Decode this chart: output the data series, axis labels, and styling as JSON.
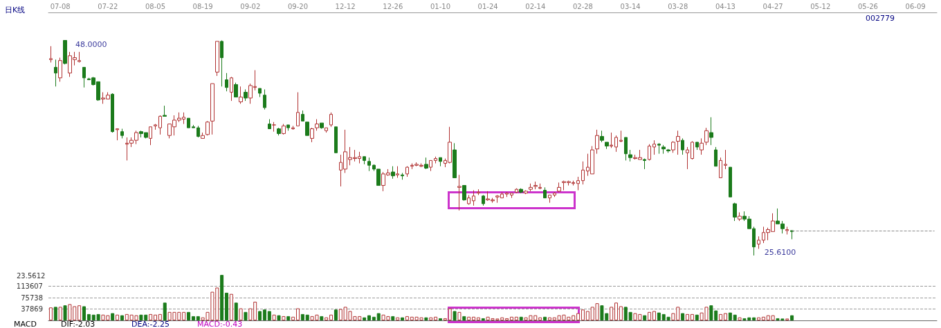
{
  "chart_data": [
    {
      "type": "candlestick",
      "title": "日K线",
      "subtitle": "002779",
      "categories": [
        null,
        null,
        "07-08",
        null,
        null,
        null,
        null,
        null,
        null,
        null,
        null,
        null,
        "07-22",
        null,
        null,
        null,
        null,
        null,
        null,
        null,
        null,
        null,
        "08-05",
        null,
        null,
        null,
        null,
        null,
        null,
        null,
        null,
        null,
        "08-19",
        null,
        null,
        null,
        null,
        null,
        null,
        null,
        null,
        null,
        "09-02",
        null,
        null,
        null,
        null,
        null,
        null,
        null,
        null,
        null,
        "09-20",
        null,
        null,
        null,
        null,
        null,
        null,
        null,
        null,
        null,
        "12-12",
        null,
        null,
        null,
        null,
        null,
        null,
        null,
        null,
        null,
        "12-26",
        null,
        null,
        null,
        null,
        null,
        null,
        null,
        null,
        null,
        "01-10",
        null,
        null,
        null,
        null,
        null,
        null,
        null,
        null,
        null,
        "01-24",
        null,
        null,
        null,
        null,
        null,
        null,
        null,
        null,
        null,
        "02-14",
        null,
        null,
        null,
        null,
        null,
        null,
        null,
        null,
        null,
        "02-28",
        null,
        null,
        null,
        null,
        null,
        null,
        null,
        null,
        null,
        "03-14",
        null,
        null,
        null,
        null,
        null,
        null,
        null,
        null,
        null,
        "03-28",
        null,
        null,
        null,
        null,
        null,
        null,
        null,
        null,
        null,
        "04-13",
        null,
        null,
        null,
        null,
        null,
        null,
        null,
        null,
        null,
        "04-27",
        null,
        null,
        null,
        null,
        null,
        null,
        null,
        null,
        null,
        "05-12",
        null,
        null,
        null,
        null,
        null,
        null,
        null,
        null,
        null,
        "05-26",
        null,
        null,
        null,
        null,
        null,
        null,
        null,
        null,
        null,
        "06-09",
        null,
        null,
        null,
        null
      ],
      "ohlc": [
        [
          46.0,
          47.4,
          45.7,
          46.1
        ],
        [
          45.2,
          46.0,
          43.2,
          44.6
        ],
        [
          44.1,
          46.2,
          43.7,
          45.9
        ],
        [
          48.0,
          48.0,
          45.5,
          45.6
        ],
        [
          44.6,
          46.8,
          44.2,
          46.4
        ],
        [
          46.0,
          46.8,
          45.4,
          46.2
        ],
        [
          45.8,
          46.8,
          45.7,
          45.9
        ],
        [
          45.2,
          45.2,
          43.1,
          44.1
        ],
        [
          44.0,
          44.1,
          43.9,
          43.9
        ],
        [
          44.1,
          44.2,
          43.3,
          43.4
        ],
        [
          43.7,
          43.7,
          41.7,
          41.8
        ],
        [
          41.9,
          42.6,
          41.4,
          42.0
        ],
        [
          41.9,
          42.6,
          41.9,
          42.3
        ],
        [
          42.4,
          42.5,
          38.4,
          38.5
        ],
        [
          38.7,
          38.8,
          37.6,
          38.8
        ],
        [
          38.5,
          38.8,
          37.8,
          38.1
        ],
        [
          37.2,
          37.9,
          35.5,
          37.3
        ],
        [
          37.3,
          37.9,
          36.9,
          37.6
        ],
        [
          37.6,
          38.6,
          37.2,
          38.4
        ],
        [
          38.5,
          38.6,
          37.9,
          38.3
        ],
        [
          38.4,
          38.4,
          37.8,
          37.9
        ],
        [
          37.8,
          39.0,
          37.1,
          39.0
        ],
        [
          39.1,
          39.3,
          38.7,
          39.2
        ],
        [
          38.9,
          40.2,
          38.2,
          40.1
        ],
        [
          40.2,
          41.2,
          40.1,
          40.1
        ],
        [
          38.1,
          39.3,
          37.8,
          39.3
        ],
        [
          39.0,
          40.2,
          38.1,
          39.7
        ],
        [
          39.7,
          40.5,
          39.5,
          39.9
        ],
        [
          39.8,
          40.5,
          39.3,
          40.0
        ],
        [
          39.9,
          39.9,
          38.9,
          38.9
        ],
        [
          39.0,
          39.2,
          38.9,
          38.9
        ],
        [
          38.9,
          39.1,
          37.9,
          38.0
        ],
        [
          37.8,
          38.4,
          37.8,
          38.1
        ],
        [
          38.2,
          39.6,
          38.1,
          39.5
        ],
        [
          39.6,
          43.5,
          38.2,
          43.5
        ],
        [
          44.7,
          47.9,
          44.3,
          47.9
        ],
        [
          47.9,
          48.0,
          43.2,
          46.2
        ],
        [
          43.9,
          44.6,
          42.7,
          43.1
        ],
        [
          42.6,
          44.2,
          41.7,
          44.1
        ],
        [
          43.4,
          43.6,
          42.1,
          42.1
        ],
        [
          41.6,
          43.2,
          41.4,
          42.1
        ],
        [
          42.6,
          42.9,
          41.7,
          42.0
        ],
        [
          42.0,
          43.5,
          41.4,
          43.3
        ],
        [
          43.1,
          44.9,
          42.8,
          43.2
        ],
        [
          43.0,
          43.0,
          42.1,
          42.5
        ],
        [
          42.3,
          42.9,
          40.8,
          41.0
        ],
        [
          39.3,
          39.8,
          38.8,
          38.8
        ],
        [
          39.2,
          39.5,
          38.5,
          39.2
        ],
        [
          38.8,
          38.9,
          38.1,
          38.3
        ],
        [
          38.3,
          39.3,
          38.2,
          39.1
        ],
        [
          39.2,
          39.2,
          38.6,
          38.9
        ],
        [
          38.8,
          39.1,
          38.7,
          38.9
        ],
        [
          39.1,
          42.6,
          39.1,
          40.5
        ],
        [
          40.3,
          40.7,
          39.6,
          39.6
        ],
        [
          39.5,
          39.5,
          38.1,
          38.1
        ],
        [
          37.8,
          38.9,
          37.4,
          38.8
        ],
        [
          38.9,
          39.8,
          38.6,
          39.3
        ],
        [
          39.4,
          39.4,
          38.8,
          38.9
        ],
        [
          38.6,
          38.9,
          38.4,
          38.9
        ],
        [
          39.2,
          40.5,
          39.0,
          40.3
        ],
        [
          39.0,
          39.0,
          36.3,
          36.3
        ],
        [
          34.5,
          36.1,
          32.8,
          35.3
        ],
        [
          34.6,
          38.7,
          34.2,
          36.4
        ],
        [
          35.6,
          36.9,
          35.0,
          35.8
        ],
        [
          35.7,
          36.6,
          35.4,
          35.8
        ],
        [
          35.7,
          36.4,
          35.2,
          35.9
        ],
        [
          35.9,
          35.9,
          35.1,
          35.5
        ],
        [
          35.4,
          35.8,
          34.4,
          35.0
        ],
        [
          35.0,
          35.1,
          34.4,
          34.6
        ],
        [
          34.6,
          34.6,
          32.9,
          32.9
        ],
        [
          32.9,
          34.3,
          32.3,
          34.1
        ],
        [
          34.0,
          34.6,
          33.9,
          34.2
        ],
        [
          34.3,
          34.9,
          33.6,
          33.9
        ],
        [
          34.0,
          34.9,
          33.7,
          34.1
        ],
        [
          34.0,
          34.2,
          33.5,
          33.9
        ],
        [
          34.1,
          34.9,
          33.8,
          34.8
        ],
        [
          34.9,
          35.2,
          34.6,
          35.0
        ],
        [
          35.0,
          35.3,
          34.9,
          35.1
        ],
        [
          34.9,
          35.2,
          34.8,
          35.0
        ],
        [
          35.1,
          35.8,
          34.6,
          34.7
        ],
        [
          34.8,
          35.5,
          34.4,
          35.5
        ],
        [
          35.5,
          35.9,
          35.2,
          35.7
        ],
        [
          35.8,
          35.8,
          34.9,
          35.4
        ],
        [
          35.2,
          35.7,
          34.8,
          35.5
        ],
        [
          35.3,
          39.0,
          35.2,
          37.4
        ],
        [
          36.6,
          37.3,
          33.7,
          33.7
        ],
        [
          32.7,
          34.0,
          30.3,
          32.8
        ],
        [
          32.9,
          32.9,
          31.3,
          31.4
        ],
        [
          31.0,
          31.9,
          30.9,
          31.6
        ],
        [
          31.3,
          32.4,
          30.8,
          31.8
        ],
        [
          32.1,
          32.5,
          31.9,
          32.2
        ],
        [
          31.8,
          31.9,
          30.8,
          31.0
        ],
        [
          31.4,
          32.3,
          31.3,
          31.5
        ],
        [
          31.3,
          31.6,
          31.1,
          31.4
        ],
        [
          31.7,
          31.9,
          31.1,
          31.8
        ],
        [
          31.6,
          32.2,
          31.6,
          32.0
        ],
        [
          32.0,
          32.2,
          31.7,
          32.1
        ],
        [
          31.9,
          32.1,
          31.6,
          32.1
        ],
        [
          32.2,
          32.6,
          32.1,
          32.5
        ],
        [
          32.5,
          32.6,
          32.1,
          32.2
        ],
        [
          32.1,
          32.4,
          32.0,
          32.3
        ],
        [
          32.5,
          33.1,
          32.3,
          32.7
        ],
        [
          32.8,
          33.3,
          32.5,
          32.9
        ],
        [
          32.6,
          33.1,
          32.5,
          32.7
        ],
        [
          32.4,
          32.7,
          31.6,
          31.6
        ],
        [
          31.6,
          31.9,
          31.1,
          31.9
        ],
        [
          31.9,
          32.2,
          31.7,
          32.1
        ],
        [
          32.3,
          33.2,
          32.2,
          32.7
        ],
        [
          33.2,
          33.4,
          32.4,
          33.3
        ],
        [
          33.2,
          33.4,
          32.9,
          33.3
        ],
        [
          33.1,
          33.4,
          32.9,
          33.2
        ],
        [
          33.1,
          33.8,
          32.4,
          33.4
        ],
        [
          33.4,
          35.4,
          33.0,
          34.5
        ],
        [
          34.4,
          36.2,
          33.9,
          34.8
        ],
        [
          34.1,
          37.0,
          34.1,
          36.6
        ],
        [
          36.7,
          38.7,
          36.2,
          38.1
        ],
        [
          38.0,
          38.6,
          37.4,
          37.6
        ],
        [
          37.4,
          37.4,
          36.7,
          37.0
        ],
        [
          37.0,
          38.4,
          36.8,
          37.1
        ],
        [
          36.9,
          38.1,
          36.4,
          37.9
        ],
        [
          37.5,
          38.6,
          37.4,
          37.6
        ],
        [
          37.9,
          37.9,
          35.5,
          36.2
        ],
        [
          36.1,
          36.6,
          35.4,
          35.8
        ],
        [
          35.7,
          36.1,
          35.6,
          35.8
        ],
        [
          35.6,
          36.6,
          35.6,
          35.8
        ],
        [
          35.6,
          35.7,
          34.6,
          35.5
        ],
        [
          35.6,
          37.2,
          35.5,
          37.0
        ],
        [
          36.9,
          37.6,
          36.1,
          37.2
        ],
        [
          37.2,
          37.3,
          36.2,
          37.1
        ],
        [
          36.9,
          37.1,
          36.2,
          36.7
        ],
        [
          36.6,
          36.7,
          36.3,
          36.5
        ],
        [
          36.6,
          37.5,
          36.3,
          37.4
        ],
        [
          37.5,
          38.6,
          36.1,
          38.0
        ],
        [
          37.6,
          37.8,
          36.1,
          36.6
        ],
        [
          36.3,
          36.9,
          34.6,
          36.6
        ],
        [
          35.7,
          37.5,
          35.6,
          37.4
        ],
        [
          37.4,
          37.4,
          36.6,
          36.9
        ],
        [
          36.6,
          37.8,
          36.1,
          37.3
        ],
        [
          37.4,
          38.9,
          37.1,
          38.6
        ],
        [
          38.4,
          40.0,
          37.1,
          37.9
        ],
        [
          36.6,
          36.9,
          34.9,
          34.9
        ],
        [
          33.7,
          35.8,
          33.7,
          35.5
        ],
        [
          35.0,
          36.6,
          34.6,
          35.1
        ],
        [
          34.8,
          34.8,
          31.7,
          31.7
        ],
        [
          31.0,
          31.1,
          29.2,
          29.6
        ],
        [
          29.4,
          30.1,
          29.2,
          29.7
        ],
        [
          29.7,
          30.2,
          29.2,
          29.4
        ],
        [
          29.4,
          29.7,
          28.4,
          28.4
        ],
        [
          28.4,
          28.6,
          25.61,
          26.5
        ],
        [
          26.8,
          27.6,
          26.3,
          27.2
        ],
        [
          27.2,
          28.6,
          26.9,
          28.0
        ],
        [
          28.0,
          28.5,
          27.2,
          28.3
        ],
        [
          28.1,
          30.0,
          28.1,
          29.2
        ],
        [
          29.2,
          30.5,
          28.9,
          28.9
        ],
        [
          28.9,
          29.2,
          27.9,
          28.4
        ],
        [
          28.2,
          28.6,
          27.8,
          28.3
        ],
        [
          28.2,
          28.2,
          27.3,
          28.1
        ],
        null,
        null,
        null,
        null,
        null,
        null,
        null,
        null,
        null,
        null,
        null,
        null,
        null,
        null,
        null,
        null,
        null,
        null,
        null,
        null,
        null,
        null,
        null,
        null,
        null,
        null,
        null,
        null,
        null,
        null
      ],
      "colors": [
        "#b03030",
        "#1b7b1b",
        "#b03030",
        "#1b7b1b",
        "#b03030",
        "#b03030",
        "#b03030",
        "#1b7b1b",
        "#1b7b1b",
        "#1b7b1b",
        "#1b7b1b",
        "#b03030",
        "#b03030",
        "#1b7b1b",
        "#b03030",
        "#1b7b1b",
        "#b03030",
        "#b03030",
        "#b03030",
        "#1b7b1b",
        "#1b7b1b",
        "#b03030",
        "#b03030",
        "#b03030",
        "#1b7b1b",
        "#b03030",
        "#b03030",
        "#b03030",
        "#b03030",
        "#1b7b1b",
        "#1b7b1b",
        "#1b7b1b",
        "#b03030",
        "#b03030",
        "#b03030",
        "#b03030",
        "#1b7b1b",
        "#1b7b1b",
        "#b03030",
        "#1b7b1b",
        "#b03030",
        "#1b7b1b",
        "#b03030",
        "#b03030",
        "#1b7b1b",
        "#1b7b1b",
        "#1b7b1b",
        "#b03030",
        "#1b7b1b",
        "#b03030",
        "#1b7b1b",
        "#b03030",
        "#b03030",
        "#1b7b1b",
        "#1b7b1b",
        "#b03030",
        "#b03030",
        "#1b7b1b",
        "#b03030",
        "#b03030",
        "#1b7b1b",
        "#b03030",
        "#b03030",
        "#b03030",
        "#b03030",
        "#b03030",
        "#1b7b1b",
        "#1b7b1b",
        "#1b7b1b",
        "#1b7b1b",
        "#b03030",
        "#b03030",
        "#1b7b1b",
        "#b03030",
        "#1b7b1b",
        "#b03030",
        "#b03030",
        "#b03030",
        "#b03030",
        "#1b7b1b",
        "#b03030",
        "#b03030",
        "#1b7b1b",
        "#b03030",
        "#b03030",
        "#1b7b1b",
        "#b03030",
        "#1b7b1b",
        "#b03030",
        "#b03030",
        "#b03030",
        "#1b7b1b",
        "#b03030",
        "#b03030",
        "#b03030",
        "#b03030",
        "#b03030",
        "#b03030",
        "#b03030",
        "#1b7b1b",
        "#b03030",
        "#b03030",
        "#b03030",
        "#b03030",
        "#1b7b1b",
        "#b03030",
        "#b03030",
        "#b03030",
        "#b03030",
        "#b03030",
        "#b03030",
        "#b03030",
        "#b03030",
        "#b03030",
        "#b03030",
        "#b03030",
        "#1b7b1b",
        "#1b7b1b",
        "#b03030",
        "#b03030",
        "#b03030",
        "#1b7b1b",
        "#1b7b1b",
        "#b03030",
        "#b03030",
        "#1b7b1b",
        "#b03030",
        "#b03030",
        "#1b7b1b",
        "#1b7b1b",
        "#1b7b1b",
        "#b03030",
        "#b03030",
        "#1b7b1b",
        "#b03030",
        "#b03030",
        "#1b7b1b",
        "#b03030",
        "#b03030",
        "#1b7b1b",
        "#1b7b1b",
        "#b03030",
        "#b03030",
        "#1b7b1b",
        "#1b7b1b",
        "#b03030",
        "#1b7b1b",
        "#1b7b1b",
        "#1b7b1b",
        "#b03030",
        "#b03030",
        "#b03030",
        "#b03030",
        "#1b7b1b",
        "#1b7b1b",
        "#b03030",
        "#1b7b1b",
        null,
        null,
        null,
        null,
        null,
        null,
        null,
        null,
        null,
        null,
        null,
        null,
        null,
        null,
        null,
        null,
        null,
        null,
        null,
        null,
        null,
        null,
        null,
        null,
        null,
        null,
        null,
        null,
        null,
        null
      ],
      "ref_lines": [
        {
          "axis": "y",
          "value": 28.2,
          "color": "#888888",
          "line_style": "dashed"
        }
      ],
      "annotations": [
        "48.0000",
        "25.6100",
        "23.5612"
      ]
    },
    {
      "type": "bar",
      "tick_labels": "y",
      "categories": [
        null,
        null,
        null,
        null,
        null,
        null,
        null,
        null,
        null,
        null,
        null,
        null,
        null,
        null,
        null,
        null,
        null,
        null,
        null,
        null,
        null,
        null,
        null,
        null,
        null,
        null,
        null,
        null,
        null,
        null,
        null,
        null,
        null,
        null,
        null,
        null,
        null,
        null,
        null,
        null,
        null,
        null,
        null,
        null,
        null,
        null,
        null,
        null,
        null,
        null,
        null,
        null,
        null,
        null,
        null,
        null,
        null,
        null,
        null,
        null,
        null,
        null,
        null,
        null,
        null,
        null,
        null,
        null,
        null,
        null,
        null,
        null,
        null,
        null,
        null,
        null,
        null,
        null,
        null,
        null,
        null,
        null,
        null,
        null,
        null,
        null,
        null,
        null,
        null,
        null,
        null,
        null,
        null,
        null,
        null,
        null,
        null,
        null,
        null,
        null,
        null,
        null,
        null,
        null,
        null,
        null,
        null,
        null,
        null,
        null,
        null,
        null,
        null,
        null,
        null,
        null,
        null,
        null,
        null,
        null,
        null,
        null,
        null,
        null,
        null,
        null,
        null,
        null,
        null,
        null,
        null,
        null,
        null,
        null,
        null,
        null,
        null,
        null,
        null,
        null,
        null,
        null,
        null,
        null,
        null,
        null,
        null,
        null,
        null,
        null,
        null,
        null,
        null,
        null,
        null,
        null,
        null,
        null,
        null,
        null,
        null,
        null,
        null,
        null,
        null,
        null,
        null,
        null,
        null,
        null,
        null,
        null,
        null,
        null,
        null,
        null,
        null,
        null,
        null,
        null,
        null,
        null,
        null,
        null,
        null,
        null,
        null
      ],
      "values": [
        43000,
        45000,
        45000,
        50000,
        54000,
        47000,
        50000,
        47000,
        21000,
        19000,
        21000,
        19000,
        17000,
        24000,
        19000,
        17000,
        21000,
        19000,
        17000,
        19000,
        19000,
        21000,
        19000,
        21000,
        59000,
        28000,
        28000,
        28000,
        28000,
        28000,
        14000,
        14000,
        10000,
        28000,
        95000,
        109000,
        151000,
        92000,
        88000,
        59000,
        40000,
        28000,
        40000,
        62000,
        31000,
        36000,
        31000,
        19000,
        17000,
        14000,
        14000,
        12000,
        40000,
        21000,
        19000,
        14000,
        19000,
        14000,
        10000,
        19000,
        36000,
        38000,
        45000,
        31000,
        14000,
        14000,
        10000,
        17000,
        12000,
        24000,
        19000,
        14000,
        14000,
        10000,
        10000,
        14000,
        12000,
        12000,
        10000,
        10000,
        10000,
        12000,
        7000,
        7000,
        40000,
        31000,
        28000,
        14000,
        12000,
        12000,
        10000,
        7000,
        12000,
        7000,
        6000,
        10000,
        7000,
        12000,
        12000,
        12000,
        10000,
        17000,
        17000,
        10000,
        12000,
        10000,
        10000,
        17000,
        19000,
        12000,
        17000,
        24000,
        36000,
        31000,
        45000,
        57000,
        50000,
        24000,
        45000,
        59000,
        47000,
        45000,
        28000,
        24000,
        21000,
        17000,
        28000,
        31000,
        26000,
        21000,
        12000,
        24000,
        45000,
        24000,
        21000,
        21000,
        19000,
        26000,
        45000,
        50000,
        33000,
        21000,
        24000,
        26000,
        19000,
        10000,
        7000,
        10000,
        10000,
        10000,
        12000,
        17000,
        17000,
        7000,
        6000,
        6000,
        17000,
        null,
        null,
        null,
        null,
        null,
        null,
        null,
        null,
        null,
        null,
        null,
        null,
        null,
        null,
        null,
        null,
        null,
        null,
        null,
        null,
        null,
        null,
        null,
        null,
        null,
        null,
        null,
        null,
        null,
        null
      ],
      "colors": [
        "#b03030",
        "#1b7b1b",
        "#b03030",
        "#1b7b1b",
        "#b03030",
        "#b03030",
        "#b03030",
        "#1b7b1b",
        "#1b7b1b",
        "#1b7b1b",
        "#1b7b1b",
        "#b03030",
        "#b03030",
        "#1b7b1b",
        "#b03030",
        "#1b7b1b",
        "#b03030",
        "#b03030",
        "#b03030",
        "#1b7b1b",
        "#1b7b1b",
        "#b03030",
        "#b03030",
        "#b03030",
        "#1b7b1b",
        "#b03030",
        "#b03030",
        "#b03030",
        "#b03030",
        "#1b7b1b",
        "#1b7b1b",
        "#1b7b1b",
        "#b03030",
        "#b03030",
        "#b03030",
        "#b03030",
        "#1b7b1b",
        "#1b7b1b",
        "#b03030",
        "#1b7b1b",
        "#b03030",
        "#1b7b1b",
        "#b03030",
        "#b03030",
        "#1b7b1b",
        "#1b7b1b",
        "#1b7b1b",
        "#b03030",
        "#1b7b1b",
        "#b03030",
        "#1b7b1b",
        "#b03030",
        "#b03030",
        "#1b7b1b",
        "#1b7b1b",
        "#b03030",
        "#b03030",
        "#1b7b1b",
        "#b03030",
        "#b03030",
        "#1b7b1b",
        "#b03030",
        "#b03030",
        "#b03030",
        "#b03030",
        "#b03030",
        "#1b7b1b",
        "#1b7b1b",
        "#1b7b1b",
        "#1b7b1b",
        "#b03030",
        "#b03030",
        "#1b7b1b",
        "#b03030",
        "#1b7b1b",
        "#b03030",
        "#b03030",
        "#b03030",
        "#b03030",
        "#1b7b1b",
        "#b03030",
        "#b03030",
        "#1b7b1b",
        "#b03030",
        "#b03030",
        "#1b7b1b",
        "#b03030",
        "#1b7b1b",
        "#b03030",
        "#b03030",
        "#b03030",
        "#1b7b1b",
        "#b03030",
        "#b03030",
        "#b03030",
        "#b03030",
        "#b03030",
        "#b03030",
        "#b03030",
        "#1b7b1b",
        "#b03030",
        "#b03030",
        "#b03030",
        "#b03030",
        "#1b7b1b",
        "#b03030",
        "#b03030",
        "#b03030",
        "#b03030",
        "#b03030",
        "#b03030",
        "#b03030",
        "#b03030",
        "#b03030",
        "#b03030",
        "#b03030",
        "#1b7b1b",
        "#1b7b1b",
        "#b03030",
        "#b03030",
        "#b03030",
        "#1b7b1b",
        "#1b7b1b",
        "#b03030",
        "#b03030",
        "#1b7b1b",
        "#b03030",
        "#b03030",
        "#1b7b1b",
        "#1b7b1b",
        "#1b7b1b",
        "#b03030",
        "#b03030",
        "#1b7b1b",
        "#b03030",
        "#b03030",
        "#1b7b1b",
        "#b03030",
        "#b03030",
        "#1b7b1b",
        "#1b7b1b",
        "#b03030",
        "#b03030",
        "#1b7b1b",
        "#1b7b1b",
        "#b03030",
        "#1b7b1b",
        "#1b7b1b",
        "#1b7b1b",
        "#b03030",
        "#b03030",
        "#b03030",
        "#b03030",
        "#1b7b1b",
        "#1b7b1b",
        "#b03030",
        "#1b7b1b",
        null,
        null,
        null,
        null,
        null,
        null,
        null,
        null,
        null,
        null,
        null,
        null,
        null,
        null,
        null,
        null,
        null,
        null,
        null,
        null,
        null,
        null,
        null,
        null,
        null,
        null,
        null,
        null,
        null,
        null
      ],
      "ylim": [
        0,
        151476
      ],
      "yticks": [
        37869,
        75738,
        113607
      ],
      "grid": "y",
      "annotations": [
        "MACD",
        "DIF:-2.03",
        "DEA:-2.25",
        "MACD:-0.43"
      ]
    }
  ]
}
